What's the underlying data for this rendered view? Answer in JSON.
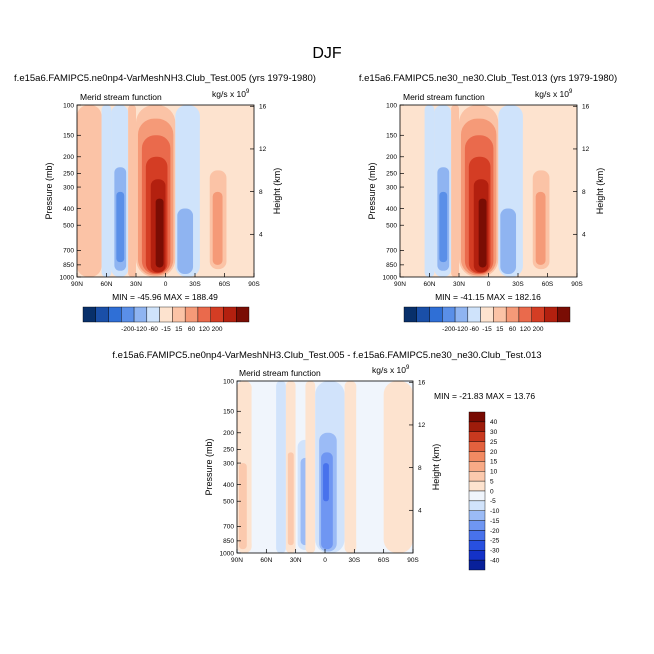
{
  "page_title": "DJF",
  "colors": {
    "scale_abs": [
      "#08306b",
      "#1a4fa8",
      "#2f6fd6",
      "#5a8fe8",
      "#8fb4f1",
      "#cfe3fb",
      "#fde3cf",
      "#fbc3a6",
      "#f59a78",
      "#ea6a4c",
      "#d43d24",
      "#b3200f",
      "#7a0d04"
    ],
    "scale_diff": [
      "#08209a",
      "#1432c8",
      "#2850e0",
      "#4872ec",
      "#6f96f2",
      "#9bbbf6",
      "#d1e3fb",
      "#f0f5fc",
      "#fde3cf",
      "#fbc9ad",
      "#f8aa86",
      "#f28a62",
      "#e3613e",
      "#c9391f",
      "#9e1c0b",
      "#780a02"
    ]
  },
  "panels": [
    {
      "title": "f.e15a6.FAMIPC5.ne0np4-VarMeshNH3.Club_Test.005 (yrs 1979-1980)",
      "left_label": "Merid stream function",
      "units": "kg/s x 10",
      "units_exp": "9",
      "stats": "MIN = -45.96   MAX = 188.49"
    },
    {
      "title": "f.e15a6.FAMIPC5.ne30_ne30.Club_Test.013 (yrs 1979-1980)",
      "left_label": "Merid stream function",
      "units": "kg/s x 10",
      "units_exp": "9",
      "stats": "MIN = -41.15   MAX = 182.16"
    },
    {
      "title": "f.e15a6.FAMIPC5.ne0np4-VarMeshNH3.Club_Test.005 - f.e15a6.FAMIPC5.ne30_ne30.Club_Test.013",
      "left_label": "Merid stream function",
      "units": "kg/s x 10",
      "units_exp": "9",
      "stats": "MIN = -21.83   MAX = 13.76"
    }
  ],
  "chart_data": [
    {
      "type": "heatmap",
      "title": "f.e15a6.FAMIPC5.ne0np4-VarMeshNH3.Club_Test.005 (yrs 1979-1980)",
      "xlabel": "",
      "ylabel": "Pressure (mb)",
      "y2label": "Height (km)",
      "x_ticks": [
        "90N",
        "60N",
        "30N",
        "0",
        "30S",
        "60S",
        "90S"
      ],
      "y_ticks": [
        "100",
        "150",
        "200",
        "250",
        "300",
        "400",
        "500",
        "700",
        "850",
        "1000"
      ],
      "y2_ticks": [
        "16",
        "12",
        "8",
        "4"
      ],
      "xlim": [
        90,
        -90
      ],
      "ylim": [
        100,
        1000
      ],
      "contour_levels": [
        -200,
        -120,
        -60,
        -15,
        15,
        60,
        120,
        200
      ],
      "colorbar_labels": [
        "-200",
        "-120",
        "-60",
        "-15",
        "15",
        "60",
        "120",
        "200"
      ],
      "min": -45.96,
      "max": 188.49,
      "cells": [
        {
          "lat_from": 90,
          "lat_to": 65,
          "p_top": 100,
          "p_bottom": 1000,
          "level": 7
        },
        {
          "lat_from": 65,
          "lat_to": 55,
          "p_top": 100,
          "p_bottom": 1000,
          "level": 5
        },
        {
          "lat_from": 55,
          "lat_to": 38,
          "p_top": 100,
          "p_bottom": 1000,
          "level": 5
        },
        {
          "lat_from": 52,
          "lat_to": 40,
          "p_top": 230,
          "p_bottom": 920,
          "level": 4
        },
        {
          "lat_from": 50,
          "lat_to": 42,
          "p_top": 320,
          "p_bottom": 820,
          "level": 3
        },
        {
          "lat_from": 38,
          "lat_to": 30,
          "p_top": 100,
          "p_bottom": 1000,
          "level": 7
        },
        {
          "lat_from": 30,
          "lat_to": -10,
          "p_top": 100,
          "p_bottom": 1000,
          "level": 7
        },
        {
          "lat_from": 28,
          "lat_to": -8,
          "p_top": 120,
          "p_bottom": 980,
          "level": 8
        },
        {
          "lat_from": 24,
          "lat_to": -5,
          "p_top": 150,
          "p_bottom": 960,
          "level": 9
        },
        {
          "lat_from": 20,
          "lat_to": -2,
          "p_top": 200,
          "p_bottom": 950,
          "level": 10
        },
        {
          "lat_from": 15,
          "lat_to": 0,
          "p_top": 270,
          "p_bottom": 940,
          "level": 11
        },
        {
          "lat_from": 10,
          "lat_to": 2,
          "p_top": 350,
          "p_bottom": 880,
          "level": 12
        },
        {
          "lat_from": -10,
          "lat_to": -35,
          "p_top": 100,
          "p_bottom": 1000,
          "level": 5
        },
        {
          "lat_from": -12,
          "lat_to": -28,
          "p_top": 400,
          "p_bottom": 960,
          "level": 4
        },
        {
          "lat_from": -35,
          "lat_to": -90,
          "p_top": 100,
          "p_bottom": 1000,
          "level": 6
        },
        {
          "lat_from": -45,
          "lat_to": -62,
          "p_top": 240,
          "p_bottom": 900,
          "level": 7
        },
        {
          "lat_from": -48,
          "lat_to": -58,
          "p_top": 320,
          "p_bottom": 850,
          "level": 8
        }
      ]
    },
    {
      "type": "heatmap",
      "title": "f.e15a6.FAMIPC5.ne30_ne30.Club_Test.013 (yrs 1979-1980)",
      "xlabel": "",
      "ylabel": "Pressure (mb)",
      "y2label": "Height (km)",
      "x_ticks": [
        "90N",
        "60N",
        "30N",
        "0",
        "30S",
        "60S",
        "90S"
      ],
      "y_ticks": [
        "100",
        "150",
        "200",
        "250",
        "300",
        "400",
        "500",
        "700",
        "850",
        "1000"
      ],
      "y2_ticks": [
        "16",
        "12",
        "8",
        "4"
      ],
      "xlim": [
        90,
        -90
      ],
      "ylim": [
        100,
        1000
      ],
      "contour_levels": [
        -200,
        -120,
        -60,
        -15,
        15,
        60,
        120,
        200
      ],
      "colorbar_labels": [
        "-200",
        "-120",
        "-60",
        "-15",
        "15",
        "60",
        "120",
        "200"
      ],
      "min": -41.15,
      "max": 182.16,
      "cells": [
        {
          "lat_from": 90,
          "lat_to": 65,
          "p_top": 100,
          "p_bottom": 1000,
          "level": 6
        },
        {
          "lat_from": 65,
          "lat_to": 55,
          "p_top": 100,
          "p_bottom": 1000,
          "level": 5
        },
        {
          "lat_from": 55,
          "lat_to": 38,
          "p_top": 100,
          "p_bottom": 1000,
          "level": 5
        },
        {
          "lat_from": 52,
          "lat_to": 40,
          "p_top": 230,
          "p_bottom": 920,
          "level": 4
        },
        {
          "lat_from": 50,
          "lat_to": 42,
          "p_top": 320,
          "p_bottom": 820,
          "level": 3
        },
        {
          "lat_from": 38,
          "lat_to": 30,
          "p_top": 100,
          "p_bottom": 1000,
          "level": 7
        },
        {
          "lat_from": 30,
          "lat_to": -10,
          "p_top": 100,
          "p_bottom": 1000,
          "level": 7
        },
        {
          "lat_from": 28,
          "lat_to": -8,
          "p_top": 120,
          "p_bottom": 980,
          "level": 8
        },
        {
          "lat_from": 24,
          "lat_to": -5,
          "p_top": 150,
          "p_bottom": 960,
          "level": 9
        },
        {
          "lat_from": 20,
          "lat_to": -2,
          "p_top": 200,
          "p_bottom": 950,
          "level": 10
        },
        {
          "lat_from": 15,
          "lat_to": 0,
          "p_top": 270,
          "p_bottom": 940,
          "level": 11
        },
        {
          "lat_from": 10,
          "lat_to": 2,
          "p_top": 350,
          "p_bottom": 880,
          "level": 12
        },
        {
          "lat_from": -10,
          "lat_to": -35,
          "p_top": 100,
          "p_bottom": 1000,
          "level": 5
        },
        {
          "lat_from": -12,
          "lat_to": -28,
          "p_top": 400,
          "p_bottom": 960,
          "level": 4
        },
        {
          "lat_from": -35,
          "lat_to": -90,
          "p_top": 100,
          "p_bottom": 1000,
          "level": 6
        },
        {
          "lat_from": -45,
          "lat_to": -62,
          "p_top": 240,
          "p_bottom": 900,
          "level": 7
        },
        {
          "lat_from": -48,
          "lat_to": -58,
          "p_top": 320,
          "p_bottom": 850,
          "level": 8
        }
      ]
    },
    {
      "type": "heatmap",
      "title": "f.e15a6.FAMIPC5.ne0np4-VarMeshNH3.Club_Test.005 - f.e15a6.FAMIPC5.ne30_ne30.Club_Test.013",
      "xlabel": "",
      "ylabel": "Pressure (mb)",
      "y2label": "Height (km)",
      "x_ticks": [
        "90N",
        "60N",
        "30N",
        "0",
        "30S",
        "60S",
        "90S"
      ],
      "y_ticks": [
        "100",
        "150",
        "200",
        "250",
        "300",
        "400",
        "500",
        "700",
        "850",
        "1000"
      ],
      "y2_ticks": [
        "16",
        "12",
        "8",
        "4"
      ],
      "xlim": [
        90,
        -90
      ],
      "ylim": [
        100,
        1000
      ],
      "contour_levels": [
        -40,
        -30,
        -25,
        -20,
        -15,
        -10,
        -5,
        0,
        5,
        10,
        15,
        20,
        25,
        30,
        40
      ],
      "colorbar_labels": [
        "40",
        "30",
        "25",
        "20",
        "15",
        "10",
        "5",
        "0",
        "-5",
        "-10",
        "-15",
        "-20",
        "-25",
        "-30",
        "-40"
      ],
      "min": -21.83,
      "max": 13.76,
      "cells": [
        {
          "lat_from": 90,
          "lat_to": 75,
          "p_top": 100,
          "p_bottom": 1000,
          "level": 8
        },
        {
          "lat_from": 75,
          "lat_to": 50,
          "p_top": 100,
          "p_bottom": 1000,
          "level": 7
        },
        {
          "lat_from": 88,
          "lat_to": 80,
          "p_top": 300,
          "p_bottom": 950,
          "level": 9
        },
        {
          "lat_from": 50,
          "lat_to": 40,
          "p_top": 100,
          "p_bottom": 1000,
          "level": 6
        },
        {
          "lat_from": 40,
          "lat_to": 30,
          "p_top": 100,
          "p_bottom": 1000,
          "level": 8
        },
        {
          "lat_from": 38,
          "lat_to": 32,
          "p_top": 260,
          "p_bottom": 900,
          "level": 9
        },
        {
          "lat_from": 30,
          "lat_to": 20,
          "p_top": 100,
          "p_bottom": 1000,
          "level": 7
        },
        {
          "lat_from": 28,
          "lat_to": 12,
          "p_top": 220,
          "p_bottom": 960,
          "level": 6
        },
        {
          "lat_from": 25,
          "lat_to": 15,
          "p_top": 280,
          "p_bottom": 900,
          "level": 5
        },
        {
          "lat_from": 20,
          "lat_to": 10,
          "p_top": 100,
          "p_bottom": 1000,
          "level": 8
        },
        {
          "lat_from": 10,
          "lat_to": -20,
          "p_top": 100,
          "p_bottom": 1000,
          "level": 6
        },
        {
          "lat_from": 6,
          "lat_to": -12,
          "p_top": 200,
          "p_bottom": 980,
          "level": 5
        },
        {
          "lat_from": 4,
          "lat_to": -8,
          "p_top": 260,
          "p_bottom": 950,
          "level": 4
        },
        {
          "lat_from": 2,
          "lat_to": -4,
          "p_top": 300,
          "p_bottom": 500,
          "level": 3
        },
        {
          "lat_from": -20,
          "lat_to": -32,
          "p_top": 100,
          "p_bottom": 1000,
          "level": 8
        },
        {
          "lat_from": -32,
          "lat_to": -60,
          "p_top": 100,
          "p_bottom": 1000,
          "level": 7
        },
        {
          "lat_from": -60,
          "lat_to": -90,
          "p_top": 100,
          "p_bottom": 1000,
          "level": 8
        }
      ]
    }
  ]
}
